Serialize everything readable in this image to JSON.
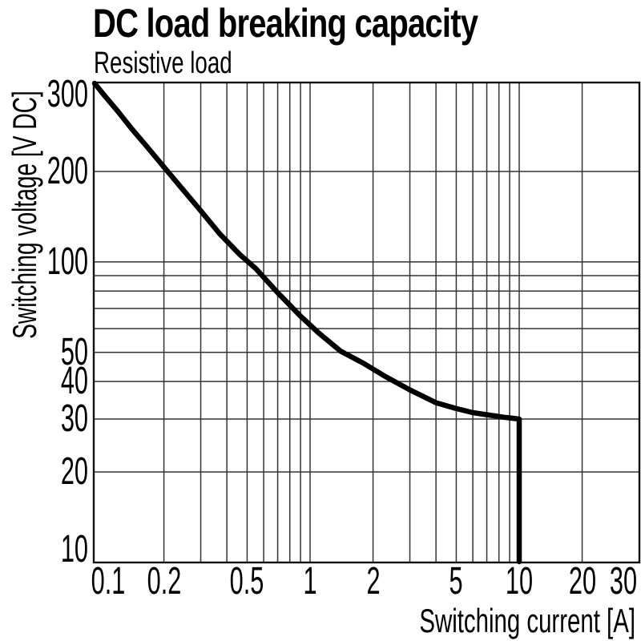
{
  "title": "DC load breaking capacity",
  "subtitle": "Resistive load",
  "chart_data": {
    "type": "line",
    "title": "DC load breaking capacity",
    "subtitle": "Resistive load",
    "xlabel": "Switching current [A]",
    "ylabel": "Switching voltage [V DC]",
    "x_scale": "log",
    "y_scale": "log",
    "xlim": [
      0.09,
      37
    ],
    "ylim": [
      10,
      400
    ],
    "grid": true,
    "legend": false,
    "x_tick_values": [
      0.1,
      0.2,
      0.5,
      1,
      2,
      5,
      10,
      20,
      30
    ],
    "x_tick_labels": [
      "0.1",
      "0.2",
      "0.5",
      "1",
      "2",
      "5",
      "10",
      "20",
      "30"
    ],
    "y_tick_values": [
      300,
      200,
      100,
      50,
      40,
      30,
      20,
      10
    ],
    "y_tick_labels": [
      "300",
      "200",
      "100",
      "50",
      "40",
      "30",
      "20",
      "10"
    ],
    "x_gridlines": [
      0.2,
      0.3,
      0.4,
      0.5,
      0.6,
      0.7,
      0.8,
      0.9,
      1,
      2,
      3,
      4,
      5,
      6,
      7,
      8,
      9,
      10,
      20
    ],
    "y_gridlines": [
      20,
      30,
      40,
      50,
      60,
      70,
      80,
      90,
      100,
      200
    ],
    "series": [
      {
        "name": "Resistive load",
        "color": "#000000",
        "points": [
          [
            0.092,
            396
          ],
          [
            0.105,
            355
          ],
          [
            0.12,
            318
          ],
          [
            0.14,
            278
          ],
          [
            0.165,
            243
          ],
          [
            0.2,
            207
          ],
          [
            0.24,
            178
          ],
          [
            0.3,
            148
          ],
          [
            0.37,
            124
          ],
          [
            0.46,
            106
          ],
          [
            0.55,
            95
          ],
          [
            0.7,
            79
          ],
          [
            0.9,
            66
          ],
          [
            1.1,
            58
          ],
          [
            1.4,
            50.5
          ],
          [
            1.8,
            46
          ],
          [
            2.3,
            41.5
          ],
          [
            3,
            37.5
          ],
          [
            4,
            34
          ],
          [
            5,
            32.5
          ],
          [
            6,
            31.5
          ],
          [
            7,
            31
          ],
          [
            8.5,
            30.4
          ],
          [
            10,
            30
          ],
          [
            10,
            10
          ]
        ]
      }
    ]
  },
  "colors": {
    "background": "#ffffff",
    "text": "#000000",
    "curve": "#000000",
    "gridline": "#333333",
    "frame": "#111111"
  }
}
